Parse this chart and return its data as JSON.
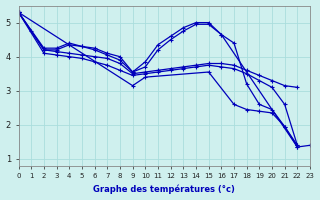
{
  "xlabel": "Graphe des températures (°c)",
  "xlim": [
    0,
    23
  ],
  "ylim": [
    0.8,
    5.5
  ],
  "xticks": [
    0,
    1,
    2,
    3,
    4,
    5,
    6,
    7,
    8,
    9,
    10,
    11,
    12,
    13,
    14,
    15,
    16,
    17,
    18,
    19,
    20,
    21,
    22,
    23
  ],
  "yticks": [
    1,
    2,
    3,
    4,
    5
  ],
  "bg_color": "#cff0ee",
  "line_color": "#0000bb",
  "grid_color": "#aadddd",
  "lines": [
    {
      "x": [
        0,
        1,
        2,
        3,
        4,
        5,
        6,
        7,
        8,
        9,
        10,
        11,
        12,
        13,
        14,
        15,
        16,
        17,
        18,
        19,
        20,
        21,
        22
      ],
      "y": [
        5.3,
        4.75,
        4.2,
        4.2,
        4.35,
        4.3,
        4.25,
        4.1,
        4.0,
        3.55,
        3.85,
        4.35,
        4.6,
        4.85,
        5.0,
        5.0,
        4.65,
        4.4,
        3.2,
        2.6,
        2.45,
        1.95,
        1.4
      ]
    },
    {
      "x": [
        0,
        2,
        3,
        4,
        5,
        6,
        7,
        8,
        9,
        10,
        11,
        12,
        13,
        14,
        15,
        16,
        22
      ],
      "y": [
        5.3,
        4.25,
        4.25,
        4.4,
        4.3,
        4.2,
        4.05,
        3.9,
        3.55,
        3.7,
        4.2,
        4.5,
        4.75,
        4.95,
        4.95,
        4.65,
        1.35
      ]
    },
    {
      "x": [
        0,
        2,
        3,
        4,
        5,
        6,
        7,
        8,
        9,
        10,
        11,
        12,
        13,
        14,
        15,
        16,
        17,
        18,
        19,
        20,
        21,
        22
      ],
      "y": [
        5.3,
        4.2,
        4.15,
        4.1,
        4.05,
        4.0,
        3.95,
        3.8,
        3.5,
        3.55,
        3.6,
        3.65,
        3.7,
        3.75,
        3.8,
        3.8,
        3.75,
        3.6,
        3.45,
        3.3,
        3.15,
        3.1
      ]
    },
    {
      "x": [
        0,
        2,
        3,
        4,
        5,
        6,
        7,
        8,
        9,
        10,
        11,
        12,
        13,
        14,
        15,
        16,
        17,
        18,
        19,
        20,
        21,
        22
      ],
      "y": [
        5.3,
        4.1,
        4.05,
        4.0,
        3.95,
        3.85,
        3.75,
        3.6,
        3.45,
        3.5,
        3.55,
        3.6,
        3.65,
        3.7,
        3.75,
        3.7,
        3.65,
        3.5,
        3.3,
        3.1,
        2.6,
        1.4
      ]
    },
    {
      "x": [
        0,
        9,
        10,
        15,
        17,
        18,
        19,
        20,
        21,
        22,
        23
      ],
      "y": [
        5.3,
        3.15,
        3.4,
        3.55,
        2.6,
        2.45,
        2.4,
        2.35,
        1.95,
        1.35,
        1.4
      ]
    }
  ]
}
